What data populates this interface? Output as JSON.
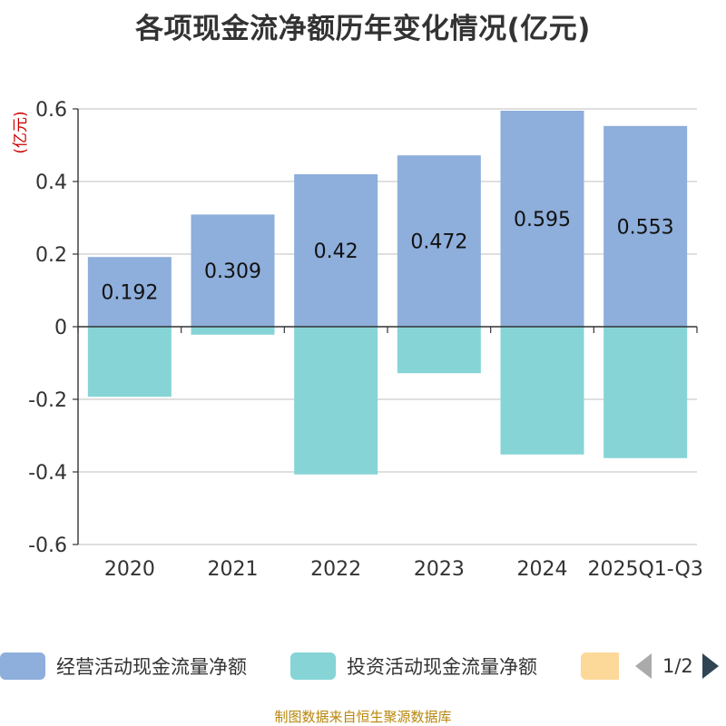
{
  "title": "各项现金流净额历年变化情况(亿元)",
  "source": "制图数据来自恒生聚源数据库",
  "legend": {
    "items": [
      {
        "label": "经营活动现金流量净额",
        "color": "#8eaedb"
      },
      {
        "label": "投资活动现金流量净额",
        "color": "#86d4d6"
      },
      {
        "label": "",
        "color": "#fcd899"
      }
    ],
    "page_text": "1/2"
  },
  "chart_data": {
    "type": "bar",
    "stacked": true,
    "title": "各项现金流净额历年变化情况(亿元)",
    "ylabel": "(亿元)",
    "xlabel": "",
    "ylim": [
      -0.6,
      0.6
    ],
    "yticks": [
      -0.6,
      -0.4,
      -0.2,
      0,
      0.2,
      0.4,
      0.6
    ],
    "ytick_labels": [
      "-0.6",
      "-0.4",
      "-0.2",
      "0",
      "0.2",
      "0.4",
      "0.6"
    ],
    "grid": true,
    "legend_position": "bottom",
    "categories": [
      "2020",
      "2021",
      "2022",
      "2023",
      "2024",
      "2025Q1-Q3"
    ],
    "series": [
      {
        "name": "经营活动现金流量净额",
        "color": "#8eaedb",
        "values": [
          0.192,
          0.309,
          0.42,
          0.472,
          0.595,
          0.553
        ],
        "labels": [
          "0.192",
          "0.309",
          "0.42",
          "0.472",
          "0.595",
          "0.553"
        ]
      },
      {
        "name": "投资活动现金流量净额",
        "color": "#86d4d6",
        "values": [
          -0.193,
          -0.022,
          -0.407,
          -0.128,
          -0.352,
          -0.362
        ]
      }
    ]
  }
}
